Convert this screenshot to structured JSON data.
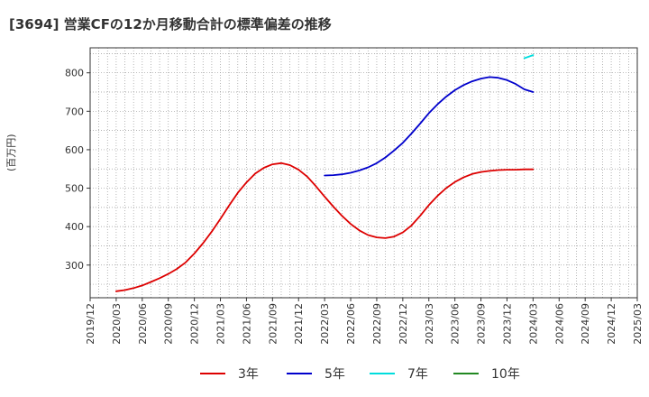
{
  "chart_data": {
    "type": "line",
    "title": "[3694]  営業CFの12か月移動合計の標準偏差の推移",
    "ylabel": "(百万円)",
    "xlabel": "",
    "ylim": [
      215,
      865
    ],
    "yticks": [
      300,
      400,
      500,
      600,
      700,
      800
    ],
    "xlim": [
      "2019-12",
      "2025-03"
    ],
    "xticks": [
      "2019/12",
      "2020/03",
      "2020/06",
      "2020/09",
      "2020/12",
      "2021/03",
      "2021/06",
      "2021/09",
      "2021/12",
      "2022/03",
      "2022/06",
      "2022/09",
      "2022/12",
      "2023/03",
      "2023/06",
      "2023/09",
      "2023/12",
      "2024/03",
      "2024/06",
      "2024/09",
      "2024/12",
      "2025/03"
    ],
    "grid": true,
    "legend_position": "bottom",
    "series": [
      {
        "name": "3年",
        "color": "#dd0000",
        "points": [
          [
            "2020-03",
            232
          ],
          [
            "2020-04",
            235
          ],
          [
            "2020-05",
            240
          ],
          [
            "2020-06",
            247
          ],
          [
            "2020-07",
            256
          ],
          [
            "2020-08",
            266
          ],
          [
            "2020-09",
            277
          ],
          [
            "2020-10",
            290
          ],
          [
            "2020-11",
            307
          ],
          [
            "2020-12",
            330
          ],
          [
            "2021-01",
            357
          ],
          [
            "2021-02",
            387
          ],
          [
            "2021-03",
            420
          ],
          [
            "2021-04",
            455
          ],
          [
            "2021-05",
            488
          ],
          [
            "2021-06",
            515
          ],
          [
            "2021-07",
            538
          ],
          [
            "2021-08",
            553
          ],
          [
            "2021-09",
            562
          ],
          [
            "2021-10",
            565
          ],
          [
            "2021-11",
            560
          ],
          [
            "2021-12",
            548
          ],
          [
            "2022-01",
            530
          ],
          [
            "2022-02",
            505
          ],
          [
            "2022-03",
            478
          ],
          [
            "2022-04",
            452
          ],
          [
            "2022-05",
            428
          ],
          [
            "2022-06",
            407
          ],
          [
            "2022-07",
            390
          ],
          [
            "2022-08",
            378
          ],
          [
            "2022-09",
            372
          ],
          [
            "2022-10",
            370
          ],
          [
            "2022-11",
            374
          ],
          [
            "2022-12",
            385
          ],
          [
            "2023-01",
            403
          ],
          [
            "2023-02",
            428
          ],
          [
            "2023-03",
            456
          ],
          [
            "2023-04",
            480
          ],
          [
            "2023-05",
            500
          ],
          [
            "2023-06",
            516
          ],
          [
            "2023-07",
            528
          ],
          [
            "2023-08",
            537
          ],
          [
            "2023-09",
            542
          ],
          [
            "2023-10",
            545
          ],
          [
            "2023-11",
            547
          ],
          [
            "2023-12",
            548
          ],
          [
            "2024-01",
            548
          ],
          [
            "2024-02",
            549
          ],
          [
            "2024-03",
            549
          ]
        ]
      },
      {
        "name": "5年",
        "color": "#0000cc",
        "points": [
          [
            "2022-03",
            533
          ],
          [
            "2022-04",
            534
          ],
          [
            "2022-05",
            536
          ],
          [
            "2022-06",
            540
          ],
          [
            "2022-07",
            546
          ],
          [
            "2022-08",
            554
          ],
          [
            "2022-09",
            565
          ],
          [
            "2022-10",
            580
          ],
          [
            "2022-11",
            598
          ],
          [
            "2022-12",
            618
          ],
          [
            "2023-01",
            642
          ],
          [
            "2023-02",
            668
          ],
          [
            "2023-03",
            695
          ],
          [
            "2023-04",
            718
          ],
          [
            "2023-05",
            738
          ],
          [
            "2023-06",
            755
          ],
          [
            "2023-07",
            768
          ],
          [
            "2023-08",
            778
          ],
          [
            "2023-09",
            785
          ],
          [
            "2023-10",
            789
          ],
          [
            "2023-11",
            787
          ],
          [
            "2023-12",
            781
          ],
          [
            "2024-01",
            771
          ],
          [
            "2024-02",
            757
          ],
          [
            "2024-03",
            750
          ]
        ]
      },
      {
        "name": "7年",
        "color": "#00dddd",
        "points": [
          [
            "2024-02",
            838
          ],
          [
            "2024-03",
            846
          ]
        ]
      },
      {
        "name": "10年",
        "color": "#228822",
        "points": []
      }
    ]
  }
}
